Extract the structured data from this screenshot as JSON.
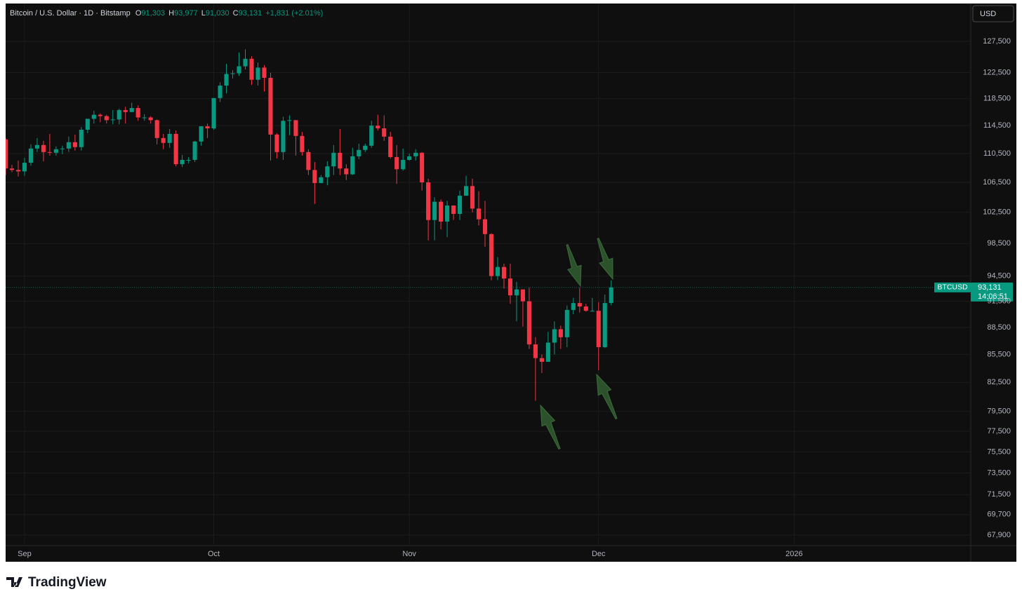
{
  "header": {
    "symbol": "Bitcoin / U.S. Dollar · 1D · Bitstamp",
    "ohlc": [
      {
        "label": "O",
        "value": "91,303"
      },
      {
        "label": "H",
        "value": "93,977"
      },
      {
        "label": "L",
        "value": "91,030"
      },
      {
        "label": "C",
        "value": "93,131"
      }
    ],
    "change": "+1,831 (+2.01%)",
    "currency": "USD"
  },
  "footer": {
    "brand": "TradingView"
  },
  "chart_data": {
    "type": "candlestick",
    "log_scale": true,
    "grid": true,
    "up_color": "#089981",
    "down_color": "#f23645",
    "x": [
      0,
      1,
      2,
      3,
      4,
      5,
      6,
      7,
      8,
      9,
      10,
      11,
      12,
      13,
      14,
      15,
      16,
      17,
      18,
      19,
      20,
      21,
      22,
      23,
      24,
      25,
      26,
      27,
      28,
      29,
      30,
      31,
      32,
      33,
      34,
      35,
      36,
      37,
      38,
      39,
      40,
      41,
      42,
      43,
      44,
      45,
      46,
      47,
      48,
      49,
      50,
      51,
      52,
      53,
      54,
      55,
      56,
      57,
      58,
      59,
      60,
      61,
      62,
      63,
      64,
      65,
      66,
      67,
      68,
      69,
      70,
      71,
      72,
      73,
      74,
      75,
      76,
      77,
      78,
      79,
      80,
      81,
      82,
      83,
      84,
      85,
      86,
      87,
      88,
      89,
      90,
      91,
      92,
      93,
      94,
      95,
      96
    ],
    "series": [
      {
        "name": "BTCUSD",
        "ohlc": [
          [
            112500,
            112700,
            107500,
            108400
          ],
          [
            108400,
            108900,
            107900,
            108200
          ],
          [
            108200,
            109500,
            107300,
            108000
          ],
          [
            108000,
            109900,
            107400,
            109200
          ],
          [
            109200,
            111800,
            108800,
            111200
          ],
          [
            111200,
            112700,
            110700,
            111700
          ],
          [
            111700,
            112300,
            109400,
            110700
          ],
          [
            110700,
            113300,
            110200,
            110600
          ],
          [
            110600,
            111500,
            110200,
            111100
          ],
          [
            111100,
            111600,
            110400,
            111200
          ],
          [
            111200,
            112900,
            110700,
            112100
          ],
          [
            112100,
            113200,
            110900,
            111400
          ],
          [
            111400,
            114300,
            110900,
            113900
          ],
          [
            113900,
            115500,
            113400,
            115500
          ],
          [
            115500,
            116700,
            114800,
            116100
          ],
          [
            116100,
            116300,
            115000,
            115900
          ],
          [
            115900,
            116100,
            114800,
            115300
          ],
          [
            115300,
            116800,
            114700,
            115400
          ],
          [
            115400,
            117000,
            114700,
            116800
          ],
          [
            116800,
            117300,
            114800,
            116500
          ],
          [
            116500,
            117900,
            116500,
            117100
          ],
          [
            117100,
            117500,
            115200,
            115700
          ],
          [
            115700,
            116200,
            115200,
            115700
          ],
          [
            115700,
            115900,
            114800,
            115300
          ],
          [
            115300,
            115400,
            111800,
            112700
          ],
          [
            112700,
            113300,
            111100,
            112000
          ],
          [
            112000,
            114000,
            111300,
            113300
          ],
          [
            113300,
            113800,
            108700,
            109000
          ],
          [
            109000,
            110300,
            108600,
            109600
          ],
          [
            109600,
            110000,
            109100,
            109600
          ],
          [
            109600,
            112300,
            109300,
            112200
          ],
          [
            112200,
            114400,
            111600,
            114400
          ],
          [
            114400,
            114800,
            112700,
            114100
          ],
          [
            114100,
            118600,
            113900,
            118600
          ],
          [
            118600,
            121000,
            118000,
            120500
          ],
          [
            120500,
            123900,
            119300,
            122300
          ],
          [
            122300,
            122900,
            121600,
            122400
          ],
          [
            122400,
            125700,
            122000,
            123500
          ],
          [
            123500,
            126200,
            123000,
            124700
          ],
          [
            124700,
            125100,
            120600,
            121400
          ],
          [
            121400,
            124100,
            120500,
            123300
          ],
          [
            123300,
            123700,
            119600,
            121700
          ],
          [
            121700,
            122500,
            109500,
            113200
          ],
          [
            113200,
            113400,
            109800,
            110700
          ],
          [
            110700,
            115800,
            109600,
            115200
          ],
          [
            115200,
            116000,
            113100,
            115300
          ],
          [
            115300,
            115300,
            110200,
            113000
          ],
          [
            113000,
            113600,
            110200,
            110700
          ],
          [
            110700,
            111100,
            107500,
            108200
          ],
          [
            108200,
            109300,
            103600,
            106400
          ],
          [
            106400,
            107500,
            106400,
            107200
          ],
          [
            107200,
            109400,
            106100,
            108700
          ],
          [
            108700,
            111700,
            107500,
            110600
          ],
          [
            110600,
            114000,
            107500,
            108400
          ],
          [
            108400,
            109000,
            106800,
            107600
          ],
          [
            107600,
            111300,
            107500,
            110100
          ],
          [
            110100,
            111900,
            109700,
            111000
          ],
          [
            111000,
            111900,
            110700,
            111600
          ],
          [
            111600,
            115200,
            111300,
            114500
          ],
          [
            114500,
            116100,
            113800,
            114100
          ],
          [
            114100,
            116000,
            112300,
            112900
          ],
          [
            112900,
            113600,
            109800,
            110000
          ],
          [
            110000,
            111700,
            106300,
            108300
          ],
          [
            108300,
            111200,
            108100,
            109600
          ],
          [
            109600,
            110500,
            109500,
            110100
          ],
          [
            110100,
            111100,
            109500,
            110600
          ],
          [
            110600,
            110700,
            105400,
            106500
          ],
          [
            106500,
            107000,
            98900,
            101500
          ],
          [
            101500,
            104500,
            98900,
            103900
          ],
          [
            103900,
            104200,
            100300,
            101300
          ],
          [
            101300,
            104000,
            99300,
            103400
          ],
          [
            103400,
            103400,
            101500,
            102300
          ],
          [
            102300,
            105400,
            101500,
            104700
          ],
          [
            104700,
            107400,
            104700,
            106000
          ],
          [
            106000,
            107000,
            102500,
            103000
          ],
          [
            103000,
            105300,
            100800,
            101600
          ],
          [
            101600,
            104000,
            98100,
            99700
          ],
          [
            99700,
            99800,
            94000,
            94500
          ],
          [
            94500,
            96800,
            94000,
            95600
          ],
          [
            95600,
            96000,
            93000,
            94200
          ],
          [
            94200,
            96000,
            91200,
            92200
          ],
          [
            92200,
            93800,
            89200,
            92900
          ],
          [
            92900,
            92900,
            88600,
            91500
          ],
          [
            91500,
            93100,
            86100,
            86600
          ],
          [
            86600,
            87400,
            80600,
            85100
          ],
          [
            85100,
            85500,
            83500,
            84700
          ],
          [
            84700,
            88000,
            84700,
            86800
          ],
          [
            86800,
            89200,
            85500,
            88300
          ],
          [
            88300,
            88700,
            86100,
            87400
          ],
          [
            87400,
            91000,
            86300,
            90500
          ],
          [
            90500,
            91900,
            90000,
            91300
          ],
          [
            91300,
            93100,
            90200,
            90900
          ],
          [
            90900,
            91200,
            90300,
            90400
          ],
          [
            90400,
            91900,
            90300,
            90400
          ],
          [
            90400,
            91400,
            83800,
            86300
          ],
          [
            86300,
            92300,
            86200,
            91300
          ],
          [
            91303,
            93977,
            91030,
            93131
          ]
        ]
      }
    ],
    "current_price": {
      "value": 93131,
      "label": "93,131",
      "countdown": "14:06:51"
    },
    "xlim": [
      0,
      153
    ],
    "xticks": [
      {
        "value": 3,
        "label": "Sep"
      },
      {
        "value": 33,
        "label": "Oct"
      },
      {
        "value": 64,
        "label": "Nov"
      },
      {
        "value": 94,
        "label": "Dec"
      },
      {
        "value": 125,
        "label": "2026"
      }
    ],
    "ylim": [
      66990,
      133810
    ],
    "yticks": [
      {
        "value": 67900,
        "label": "67,900"
      },
      {
        "value": 69700,
        "label": "69,700"
      },
      {
        "value": 71500,
        "label": "71,500"
      },
      {
        "value": 73500,
        "label": "73,500"
      },
      {
        "value": 75500,
        "label": "75,500"
      },
      {
        "value": 77500,
        "label": "77,500"
      },
      {
        "value": 79500,
        "label": "79,500"
      },
      {
        "value": 82500,
        "label": "82,500"
      },
      {
        "value": 85500,
        "label": "85,500"
      },
      {
        "value": 88500,
        "label": "88,500"
      },
      {
        "value": 91500,
        "label": "91,500"
      },
      {
        "value": 94500,
        "label": "94,500"
      },
      {
        "value": 98500,
        "label": "98,500"
      },
      {
        "value": 102500,
        "label": "102,500"
      },
      {
        "value": 106500,
        "label": "106,500"
      },
      {
        "value": 110500,
        "label": "110,500"
      },
      {
        "value": 114500,
        "label": "114,500"
      },
      {
        "value": 118500,
        "label": "118,500"
      },
      {
        "value": 122500,
        "label": "122,500"
      },
      {
        "value": 127500,
        "label": "127,500"
      }
    ]
  }
}
